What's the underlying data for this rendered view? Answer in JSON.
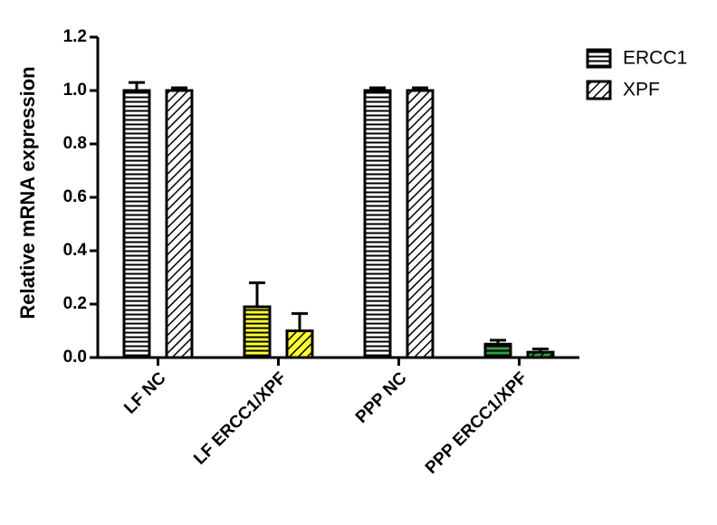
{
  "chart_data": {
    "type": "bar",
    "y_label": "Relative mRNA expression",
    "categories": [
      "LF NC",
      "LF ERCC1/XPF",
      "PPP NC",
      "PPP ERCC1/XPF"
    ],
    "series": [
      {
        "name": "ERCC1",
        "pattern": "horizontal",
        "colors": [
          "#ffffff",
          "#ffff33",
          "#ffffff",
          "#2e9e3e"
        ],
        "values": [
          1.0,
          0.19,
          1.0,
          0.05
        ],
        "errors": [
          0.03,
          0.09,
          0.01,
          0.015
        ]
      },
      {
        "name": "XPF",
        "pattern": "diagonal",
        "colors": [
          "#ffffff",
          "#ffff33",
          "#ffffff",
          "#2e9e3e"
        ],
        "values": [
          1.0,
          0.1,
          1.0,
          0.02
        ],
        "errors": [
          0.01,
          0.065,
          0.01,
          0.012
        ]
      }
    ],
    "ylim": [
      0,
      1.2
    ],
    "yticks": [
      {
        "value": 0,
        "label": "0.0"
      },
      0.2,
      0.4,
      0.6,
      0.8,
      {
        "value": 1,
        "label": "1.0"
      },
      1.2
    ],
    "legend": "top-right"
  }
}
